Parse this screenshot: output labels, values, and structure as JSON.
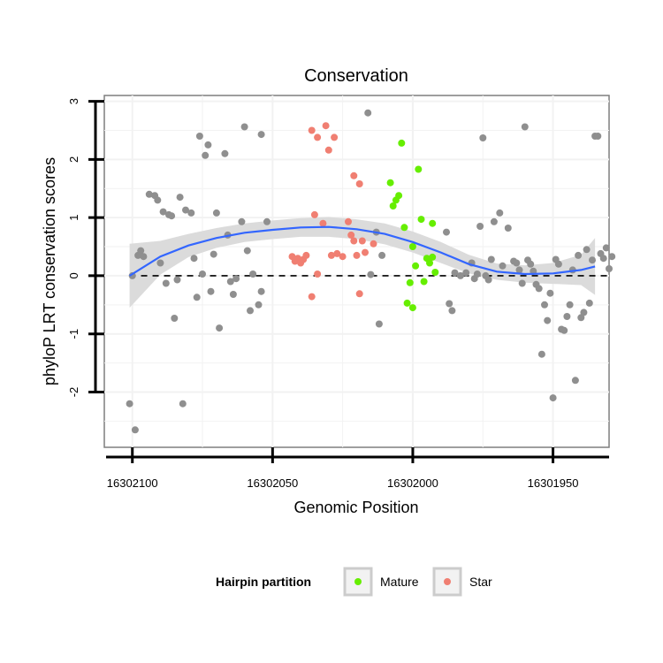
{
  "chart_data": {
    "type": "scatter",
    "title": "Conservation",
    "xlabel": "Genomic Position",
    "ylabel": "phyloP LRT conservation scores",
    "x_reversed": true,
    "xlim": [
      16302110,
      16301930
    ],
    "ylim": [
      -2.95,
      3.1
    ],
    "x_ticks": [
      16302100,
      16302050,
      16302000,
      16301950
    ],
    "x_tick_labels": [
      "16302100",
      "16302050",
      "16302000",
      "16301950"
    ],
    "y_ticks": [
      -2,
      -1,
      0,
      1,
      2,
      3
    ],
    "y_tick_labels": [
      "-2",
      "-1",
      "0",
      "1",
      "2",
      "3"
    ],
    "grid": true,
    "reference_line": {
      "y": 0,
      "style": "dashed",
      "color": "#000000"
    },
    "legend": {
      "title": "Hairpin partition",
      "position": "bottom",
      "entries": [
        {
          "label": "Mature",
          "color": "#66ee00"
        },
        {
          "label": "Star",
          "color": "#f07f72"
        }
      ]
    },
    "colors": {
      "other": "#8f8f8f",
      "Mature": "#66ee00",
      "Star": "#f07f72",
      "smooth": "#3366ff",
      "ribbon": "#d9d9d9"
    },
    "smooth": {
      "x": [
        16302101,
        16302090,
        16302080,
        16302070,
        16302060,
        16302050,
        16302040,
        16302030,
        16302020,
        16302010,
        16302000,
        16301990,
        16301980,
        16301970,
        16301960,
        16301950,
        16301940,
        16301935
      ],
      "y": [
        0.0,
        0.33,
        0.52,
        0.65,
        0.74,
        0.79,
        0.83,
        0.84,
        0.8,
        0.72,
        0.58,
        0.4,
        0.2,
        0.07,
        0.03,
        0.04,
        0.1,
        0.16
      ],
      "lower": [
        -0.55,
        0.02,
        0.32,
        0.48,
        0.58,
        0.63,
        0.67,
        0.67,
        0.63,
        0.54,
        0.4,
        0.22,
        0.04,
        -0.07,
        -0.12,
        -0.14,
        -0.16,
        -0.33
      ],
      "upper": [
        0.55,
        0.6,
        0.72,
        0.82,
        0.9,
        0.95,
        0.99,
        1.01,
        0.97,
        0.9,
        0.76,
        0.58,
        0.36,
        0.21,
        0.18,
        0.22,
        0.36,
        0.65
      ]
    },
    "series": [
      {
        "name": "Mature",
        "points": [
          {
            "x": 16302008,
            "y": 1.6
          },
          {
            "x": 16302006,
            "y": 1.3
          },
          {
            "x": 16302005,
            "y": 1.38
          },
          {
            "x": 16302007,
            "y": 1.2
          },
          {
            "x": 16302004,
            "y": 2.28
          },
          {
            "x": 16301998,
            "y": 1.83
          },
          {
            "x": 16302003,
            "y": 0.83
          },
          {
            "x": 16301997,
            "y": 0.97
          },
          {
            "x": 16301993,
            "y": 0.9
          },
          {
            "x": 16302000,
            "y": 0.5
          },
          {
            "x": 16301995,
            "y": 0.3
          },
          {
            "x": 16301994,
            "y": 0.22
          },
          {
            "x": 16301993,
            "y": 0.32
          },
          {
            "x": 16301999,
            "y": 0.17
          },
          {
            "x": 16301992,
            "y": 0.06
          },
          {
            "x": 16301996,
            "y": -0.1
          },
          {
            "x": 16302001,
            "y": -0.12
          },
          {
            "x": 16302002,
            "y": -0.47
          },
          {
            "x": 16302000,
            "y": -0.55
          }
        ]
      },
      {
        "name": "Star",
        "points": [
          {
            "x": 16302036,
            "y": 2.5
          },
          {
            "x": 16302034,
            "y": 2.38
          },
          {
            "x": 16302031,
            "y": 2.58
          },
          {
            "x": 16302028,
            "y": 2.38
          },
          {
            "x": 16302030,
            "y": 2.16
          },
          {
            "x": 16302035,
            "y": 1.05
          },
          {
            "x": 16302032,
            "y": 0.9
          },
          {
            "x": 16302023,
            "y": 0.93
          },
          {
            "x": 16302021,
            "y": 1.72
          },
          {
            "x": 16302019,
            "y": 1.58
          },
          {
            "x": 16302022,
            "y": 0.7
          },
          {
            "x": 16302021,
            "y": 0.6
          },
          {
            "x": 16302018,
            "y": 0.6
          },
          {
            "x": 16302014,
            "y": 0.55
          },
          {
            "x": 16302043,
            "y": 0.33
          },
          {
            "x": 16302042,
            "y": 0.25
          },
          {
            "x": 16302041,
            "y": 0.3
          },
          {
            "x": 16302040,
            "y": 0.22
          },
          {
            "x": 16302039,
            "y": 0.28
          },
          {
            "x": 16302038,
            "y": 0.35
          },
          {
            "x": 16302029,
            "y": 0.35
          },
          {
            "x": 16302027,
            "y": 0.38
          },
          {
            "x": 16302025,
            "y": 0.33
          },
          {
            "x": 16302020,
            "y": 0.35
          },
          {
            "x": 16302017,
            "y": 0.4
          },
          {
            "x": 16302034,
            "y": 0.03
          },
          {
            "x": 16302036,
            "y": -0.36
          },
          {
            "x": 16302019,
            "y": -0.31
          }
        ]
      },
      {
        "name": "",
        "points": [
          {
            "x": 16302101,
            "y": -2.2
          },
          {
            "x": 16302099,
            "y": -2.65
          },
          {
            "x": 16302100,
            "y": 0.0
          },
          {
            "x": 16302098,
            "y": 0.35
          },
          {
            "x": 16302097,
            "y": 0.43
          },
          {
            "x": 16302096,
            "y": 0.33
          },
          {
            "x": 16302094,
            "y": 1.4
          },
          {
            "x": 16302092,
            "y": 1.38
          },
          {
            "x": 16302091,
            "y": 1.3
          },
          {
            "x": 16302090,
            "y": 0.22
          },
          {
            "x": 16302089,
            "y": 1.1
          },
          {
            "x": 16302088,
            "y": -0.13
          },
          {
            "x": 16302087,
            "y": 1.05
          },
          {
            "x": 16302086,
            "y": 1.03
          },
          {
            "x": 16302085,
            "y": -0.73
          },
          {
            "x": 16302084,
            "y": -0.07
          },
          {
            "x": 16302083,
            "y": 1.35
          },
          {
            "x": 16302082,
            "y": -2.2
          },
          {
            "x": 16302081,
            "y": 1.13
          },
          {
            "x": 16302079,
            "y": 1.08
          },
          {
            "x": 16302078,
            "y": 0.3
          },
          {
            "x": 16302077,
            "y": -0.37
          },
          {
            "x": 16302076,
            "y": 2.4
          },
          {
            "x": 16302075,
            "y": 0.03
          },
          {
            "x": 16302074,
            "y": 2.07
          },
          {
            "x": 16302073,
            "y": 2.25
          },
          {
            "x": 16302072,
            "y": -0.27
          },
          {
            "x": 16302071,
            "y": 0.37
          },
          {
            "x": 16302070,
            "y": 1.08
          },
          {
            "x": 16302069,
            "y": -0.9
          },
          {
            "x": 16302067,
            "y": 2.1
          },
          {
            "x": 16302066,
            "y": 0.7
          },
          {
            "x": 16302065,
            "y": -0.1
          },
          {
            "x": 16302064,
            "y": -0.32
          },
          {
            "x": 16302063,
            "y": -0.05
          },
          {
            "x": 16302061,
            "y": 0.93
          },
          {
            "x": 16302060,
            "y": 2.56
          },
          {
            "x": 16302059,
            "y": 0.43
          },
          {
            "x": 16302058,
            "y": -0.6
          },
          {
            "x": 16302057,
            "y": 0.03
          },
          {
            "x": 16302055,
            "y": -0.5
          },
          {
            "x": 16302054,
            "y": -0.27
          },
          {
            "x": 16302054,
            "y": 2.43
          },
          {
            "x": 16302052,
            "y": 0.93
          },
          {
            "x": 16302016,
            "y": 2.8
          },
          {
            "x": 16302015,
            "y": 0.02
          },
          {
            "x": 16302013,
            "y": 0.75
          },
          {
            "x": 16302012,
            "y": -0.83
          },
          {
            "x": 16302011,
            "y": 0.35
          },
          {
            "x": 16301988,
            "y": 0.75
          },
          {
            "x": 16301987,
            "y": -0.48
          },
          {
            "x": 16301986,
            "y": -0.6
          },
          {
            "x": 16301985,
            "y": 0.05
          },
          {
            "x": 16301983,
            "y": 0.0
          },
          {
            "x": 16301981,
            "y": 0.05
          },
          {
            "x": 16301979,
            "y": 0.22
          },
          {
            "x": 16301978,
            "y": -0.05
          },
          {
            "x": 16301977,
            "y": 0.03
          },
          {
            "x": 16301976,
            "y": 0.85
          },
          {
            "x": 16301975,
            "y": 2.37
          },
          {
            "x": 16301974,
            "y": 0.0
          },
          {
            "x": 16301973,
            "y": -0.07
          },
          {
            "x": 16301972,
            "y": 0.28
          },
          {
            "x": 16301971,
            "y": 0.93
          },
          {
            "x": 16301969,
            "y": 1.08
          },
          {
            "x": 16301968,
            "y": 0.17
          },
          {
            "x": 16301966,
            "y": 0.82
          },
          {
            "x": 16301964,
            "y": 0.25
          },
          {
            "x": 16301963,
            "y": 0.22
          },
          {
            "x": 16301962,
            "y": 0.1
          },
          {
            "x": 16301961,
            "y": -0.13
          },
          {
            "x": 16301960,
            "y": 2.56
          },
          {
            "x": 16301959,
            "y": 0.27
          },
          {
            "x": 16301958,
            "y": 0.2
          },
          {
            "x": 16301957,
            "y": 0.08
          },
          {
            "x": 16301956,
            "y": -0.15
          },
          {
            "x": 16301955,
            "y": -0.22
          },
          {
            "x": 16301954,
            "y": -1.35
          },
          {
            "x": 16301953,
            "y": -0.5
          },
          {
            "x": 16301952,
            "y": -0.77
          },
          {
            "x": 16301951,
            "y": -0.3
          },
          {
            "x": 16301950,
            "y": -2.1
          },
          {
            "x": 16301949,
            "y": 0.28
          },
          {
            "x": 16301948,
            "y": 0.2
          },
          {
            "x": 16301947,
            "y": -0.92
          },
          {
            "x": 16301946,
            "y": -0.94
          },
          {
            "x": 16301945,
            "y": -0.7
          },
          {
            "x": 16301944,
            "y": -0.5
          },
          {
            "x": 16301943,
            "y": 0.1
          },
          {
            "x": 16301942,
            "y": -1.8
          },
          {
            "x": 16301941,
            "y": 0.35
          },
          {
            "x": 16301940,
            "y": -0.72
          },
          {
            "x": 16301939,
            "y": -0.63
          },
          {
            "x": 16301938,
            "y": 0.45
          },
          {
            "x": 16301937,
            "y": -0.47
          },
          {
            "x": 16301936,
            "y": 0.27
          },
          {
            "x": 16301935,
            "y": 2.4
          },
          {
            "x": 16301934,
            "y": 2.4
          },
          {
            "x": 16301933,
            "y": 0.38
          },
          {
            "x": 16301932,
            "y": 0.3
          },
          {
            "x": 16301931,
            "y": 0.48
          },
          {
            "x": 16301930,
            "y": 0.12
          },
          {
            "x": 16301929,
            "y": 0.33
          }
        ]
      }
    ]
  }
}
